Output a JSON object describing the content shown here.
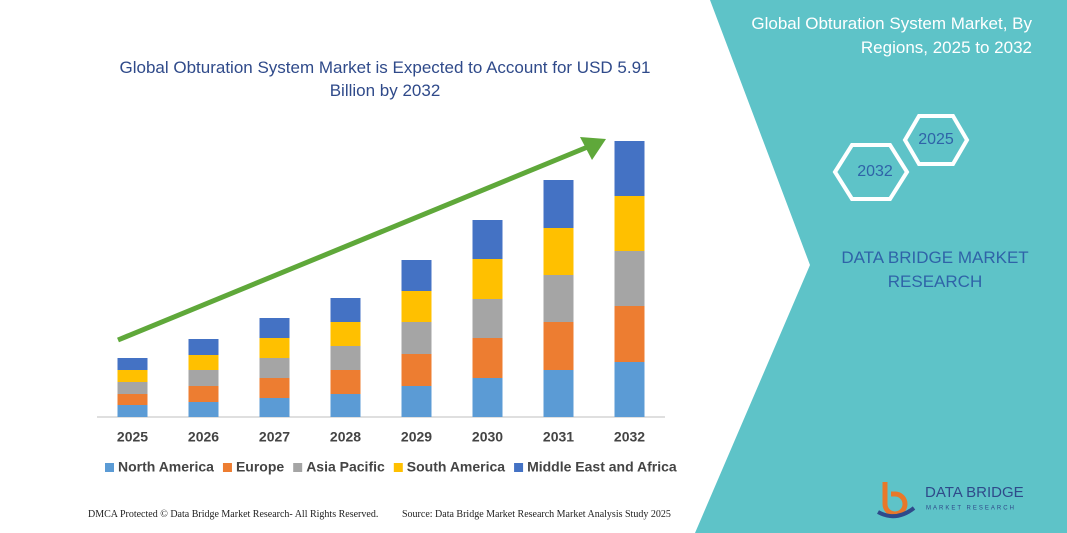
{
  "chart_data": {
    "type": "stacked_bar",
    "title": "Global Obturation System Market is Expected to Account for USD 5.91 Billion by 2032",
    "categories": [
      "2025",
      "2026",
      "2027",
      "2028",
      "2029",
      "2030",
      "2031",
      "2032"
    ],
    "series": [
      {
        "name": "North America",
        "color": "#5b9bd5",
        "values": [
          12,
          15,
          19,
          23,
          31,
          39,
          47,
          55
        ]
      },
      {
        "name": "Europe",
        "color": "#ed7d31",
        "values": [
          11,
          16,
          20,
          24,
          32,
          40,
          48,
          56
        ]
      },
      {
        "name": "Asia Pacific",
        "color": "#a5a5a5",
        "values": [
          12,
          16,
          20,
          24,
          32,
          39,
          47,
          55
        ]
      },
      {
        "name": "South America",
        "color": "#ffc000",
        "values": [
          12,
          15,
          20,
          24,
          31,
          40,
          47,
          55
        ]
      },
      {
        "name": "Middle East and Africa",
        "color": "#4472c4",
        "values": [
          12,
          16,
          20,
          24,
          31,
          39,
          48,
          55
        ]
      }
    ],
    "ylim": [
      0,
      290
    ]
  },
  "panel": {
    "title": "Global Obturation System Market, By Regions, 2025 to 2032",
    "hex_2025": "2025",
    "hex_2032": "2032",
    "brand": "DATA BRIDGE MARKET RESEARCH"
  },
  "logo": {
    "name": "DATA BRIDGE",
    "tagline": "MARKET RESEARCH"
  },
  "footer": {
    "left": "DMCA Protected © Data Bridge Market Research- All Rights Reserved.",
    "right": "Source: Data Bridge Market Research  Market Analysis Study 2025"
  }
}
